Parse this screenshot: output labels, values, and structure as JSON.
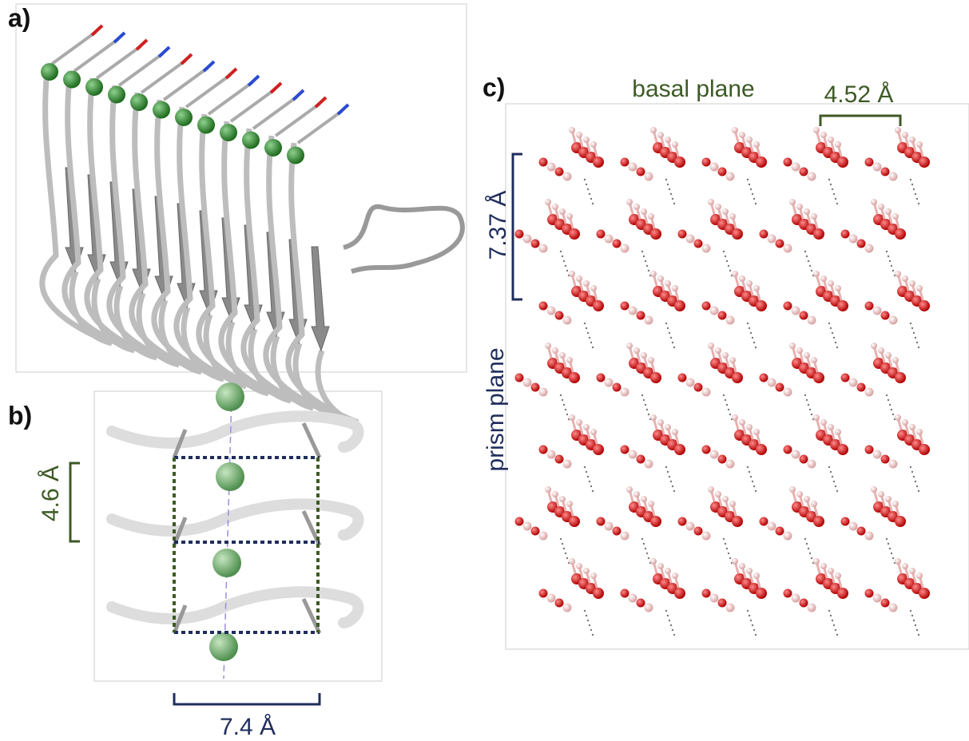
{
  "panel_a": {
    "label": "a)"
  },
  "panel_b": {
    "label": "b)",
    "vertical_spacing": "4.6 Å",
    "horizontal_spacing": "7.4 Å"
  },
  "panel_c": {
    "label": "c)",
    "top_label": "basal plane",
    "horizontal_spacing": "4.52 Å",
    "vertical_spacing": "7.37 Å",
    "side_label": "prism plane"
  }
}
